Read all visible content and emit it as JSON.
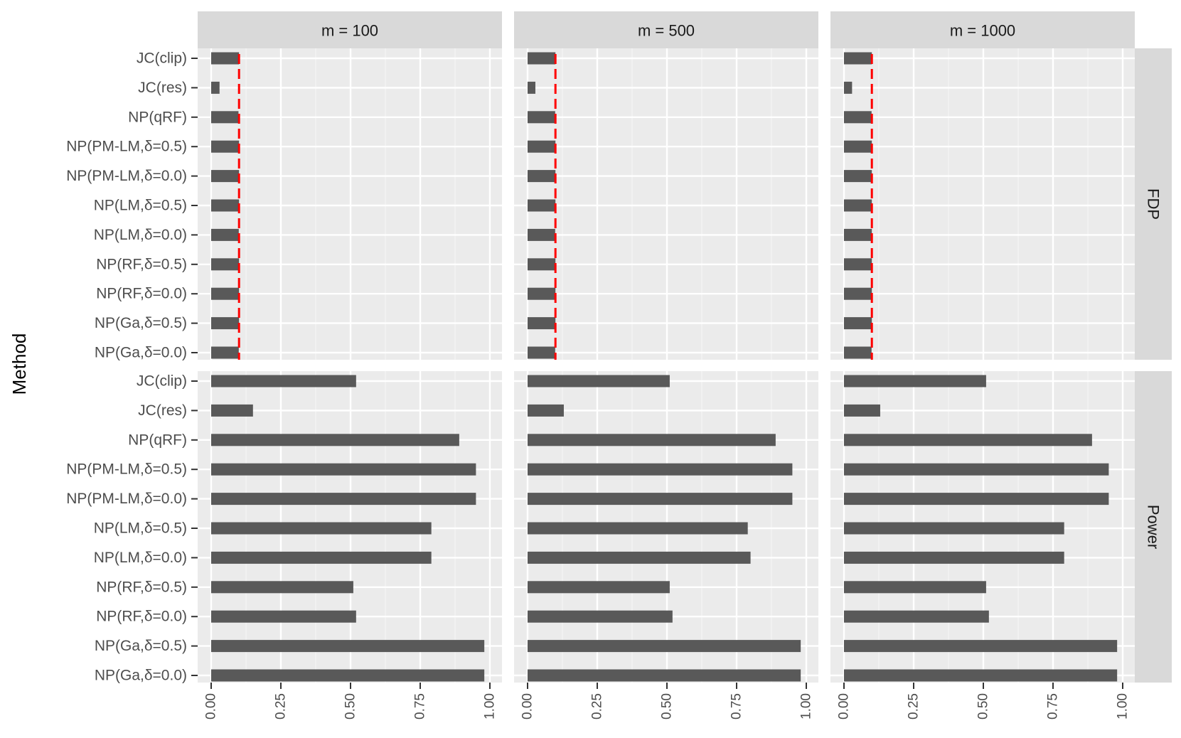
{
  "chart_data": {
    "type": "bar",
    "orientation": "horizontal",
    "facet_columns": [
      "m = 100",
      "m = 500",
      "m = 1000"
    ],
    "facet_rows": [
      "FDP",
      "Power"
    ],
    "ylabel": "Method",
    "xlabel": "",
    "xlim": [
      0,
      1
    ],
    "x_ticks": [
      "0.00",
      "0.25",
      "0.50",
      "0.75",
      "1.00"
    ],
    "x_tick_values": [
      0,
      0.25,
      0.5,
      0.75,
      1.0
    ],
    "grid": true,
    "bar_color": "#595959",
    "panel_background": "#ebebeb",
    "strip_background": "#d9d9d9",
    "reference_line": {
      "facet_row": "FDP",
      "value": 0.1,
      "style": "dashed",
      "color": "#ff0000"
    },
    "categories": [
      "JC(clip)",
      "JC(res)",
      "NP(qRF)",
      "NP(PM-LM,δ=0.5)",
      "NP(PM-LM,δ=0.0)",
      "NP(LM,δ=0.5)",
      "NP(LM,δ=0.0)",
      "NP(RF,δ=0.5)",
      "NP(RF,δ=0.0)",
      "NP(Ga,δ=0.5)",
      "NP(Ga,δ=0.0)"
    ],
    "values": {
      "FDP": {
        "m = 100": [
          0.1,
          0.03,
          0.098,
          0.1,
          0.1,
          0.1,
          0.099,
          0.1,
          0.1,
          0.1,
          0.099
        ],
        "m = 500": [
          0.1,
          0.028,
          0.099,
          0.1,
          0.1,
          0.1,
          0.099,
          0.1,
          0.1,
          0.1,
          0.099
        ],
        "m = 1000": [
          0.1,
          0.029,
          0.099,
          0.1,
          0.1,
          0.1,
          0.1,
          0.1,
          0.1,
          0.1,
          0.099
        ]
      },
      "Power": {
        "m = 100": [
          0.52,
          0.15,
          0.89,
          0.95,
          0.95,
          0.79,
          0.79,
          0.51,
          0.52,
          0.98,
          0.98
        ],
        "m = 500": [
          0.51,
          0.13,
          0.89,
          0.95,
          0.95,
          0.79,
          0.8,
          0.51,
          0.52,
          0.98,
          0.98
        ],
        "m = 1000": [
          0.51,
          0.13,
          0.89,
          0.95,
          0.95,
          0.79,
          0.79,
          0.51,
          0.52,
          0.98,
          0.98
        ]
      }
    }
  }
}
